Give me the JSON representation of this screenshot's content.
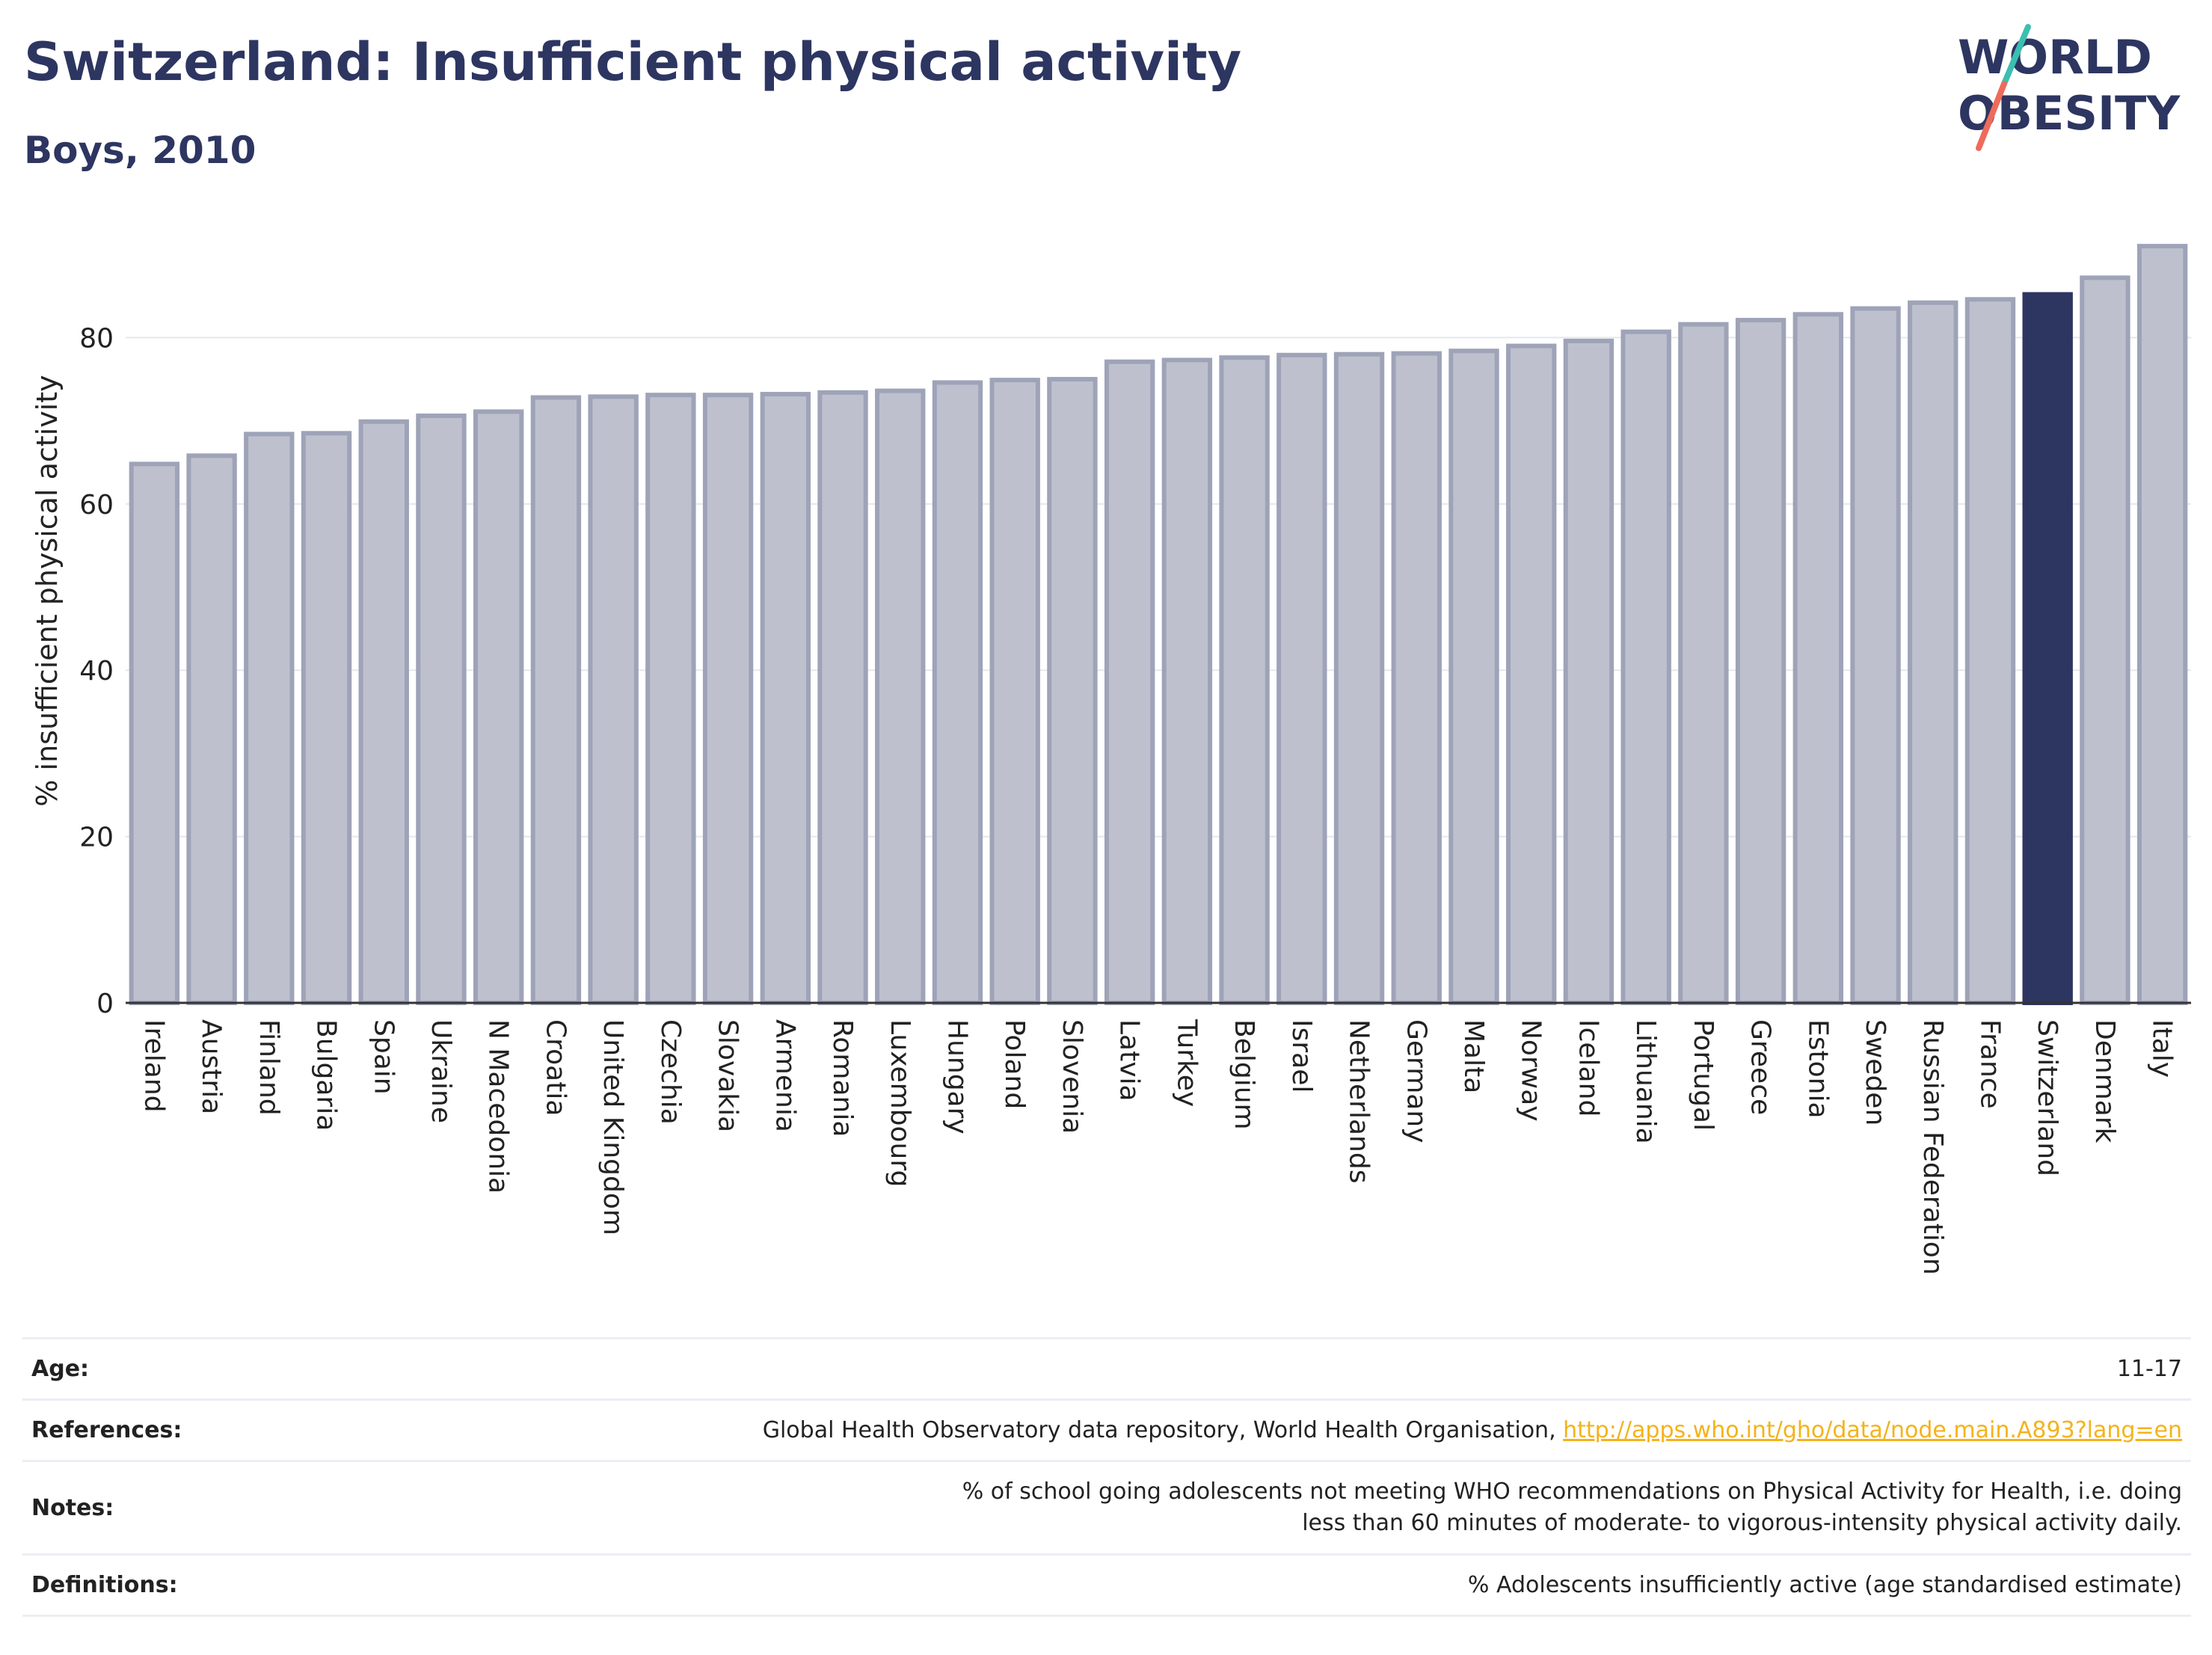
{
  "header": {
    "title": "Switzerland: Insufficient physical activity",
    "subtitle": "Boys, 2010"
  },
  "logo": {
    "line1": "WORLD",
    "line2": "OBESITY",
    "colors": {
      "text": "#2d3561",
      "slash_teal": "#3bbfb1",
      "slash_coral": "#ee6b5b"
    }
  },
  "colors": {
    "bar": "#bec1cd",
    "bar_edge": "#9ea3b8",
    "highlight": "#2d3561",
    "grid": "#e5e7ec",
    "axis": "#333333"
  },
  "chart_data": {
    "type": "bar",
    "ylabel": "% insufficient physical activity",
    "ylim": [
      0,
      92
    ],
    "yticks": [
      0,
      20,
      40,
      60,
      80
    ],
    "grid": true,
    "highlight": "Switzerland",
    "categories": [
      "Ireland",
      "Austria",
      "Finland",
      "Bulgaria",
      "Spain",
      "Ukraine",
      "N Macedonia",
      "Croatia",
      "United Kingdom",
      "Czechia",
      "Slovakia",
      "Armenia",
      "Romania",
      "Luxembourg",
      "Hungary",
      "Poland",
      "Slovenia",
      "Latvia",
      "Turkey",
      "Belgium",
      "Israel",
      "Netherlands",
      "Germany",
      "Malta",
      "Norway",
      "Iceland",
      "Lithuania",
      "Portugal",
      "Greece",
      "Estonia",
      "Sweden",
      "Russian Federation",
      "France",
      "Switzerland",
      "Denmark",
      "Italy"
    ],
    "values": [
      64.8,
      65.8,
      68.4,
      68.5,
      69.9,
      70.6,
      71.1,
      72.8,
      72.9,
      73.1,
      73.1,
      73.2,
      73.4,
      73.6,
      74.6,
      74.9,
      75.0,
      77.1,
      77.3,
      77.6,
      77.9,
      78.0,
      78.1,
      78.4,
      79.0,
      79.6,
      80.7,
      81.6,
      82.1,
      82.8,
      83.5,
      84.2,
      84.6,
      85.2,
      87.2,
      91.0
    ]
  },
  "meta": [
    {
      "key": "Age:",
      "value": "11-17"
    },
    {
      "key": "References:",
      "value": "Global Health Observatory data repository, World Health Organisation, ",
      "link": "http://apps.who.int/gho/data/node.main.A893?lang=en"
    },
    {
      "key": "Notes:",
      "value": "% of school going adolescents not meeting WHO recommendations on Physical Activity for Health, i.e. doing less than 60 minutes of moderate- to vigorous-intensity physical activity daily."
    },
    {
      "key": "Definitions:",
      "value": "% Adolescents insufficiently active (age standardised estimate)"
    }
  ]
}
